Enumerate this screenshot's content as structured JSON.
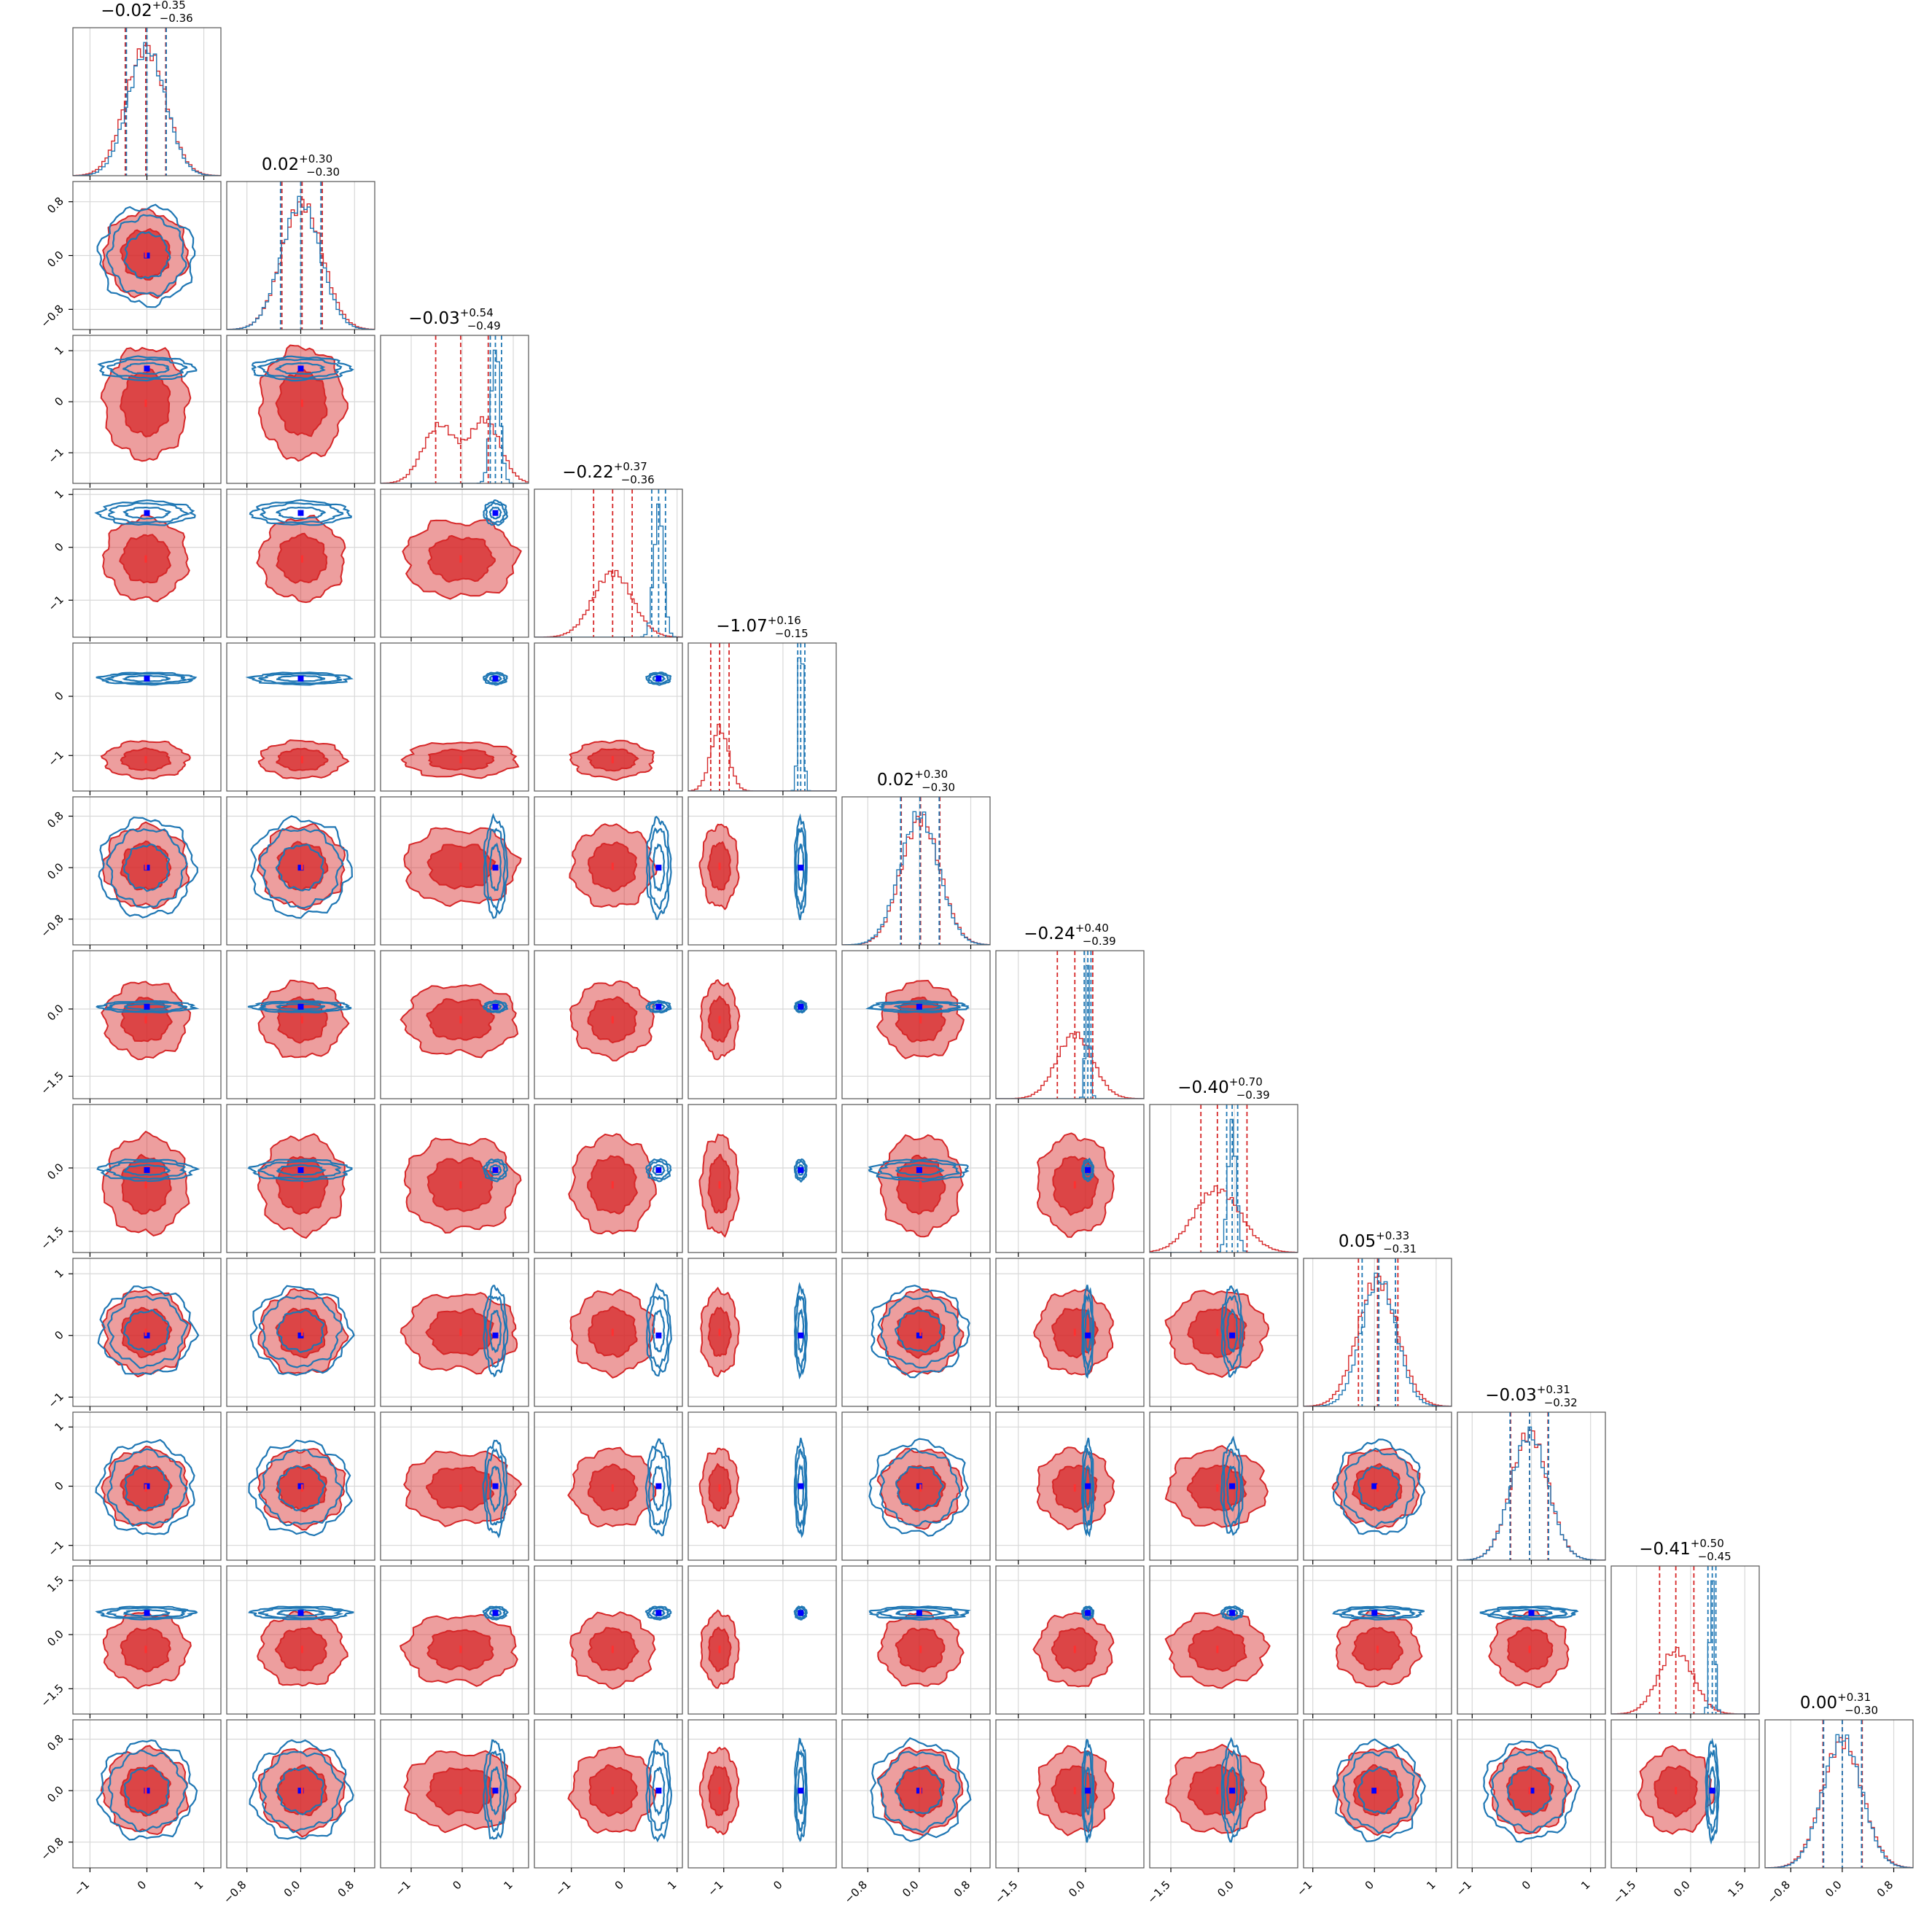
{
  "chart_data": {
    "type": "corner",
    "n_params": 12,
    "grid": true,
    "series": [
      {
        "color": "#d62728",
        "style": "filled-contours"
      },
      {
        "color": "#1f77b4",
        "style": "line-contours"
      }
    ],
    "truth_color": "#0000ff",
    "params": [
      {
        "title_median": "−0.02",
        "title_plus": "+0.35",
        "title_minus": "−0.36",
        "range": [
          -1.3,
          1.3
        ],
        "ticks": [
          -1,
          0,
          1
        ],
        "tick_labels": [
          "−1",
          "0",
          "1"
        ],
        "red_mean": -0.02,
        "red_sd": 0.35,
        "blue_mean": 0.0,
        "blue_sd": 0.33,
        "red_q": [
          -0.38,
          -0.02,
          0.33
        ],
        "blue_q": [
          -0.36,
          0.0,
          0.34
        ]
      },
      {
        "title_median": "0.02",
        "title_plus": "+0.30",
        "title_minus": "−0.30",
        "range": [
          -1.1,
          1.1
        ],
        "ticks": [
          -0.8,
          0.0,
          0.8
        ],
        "tick_labels": [
          "−0.8",
          "0.0",
          "0.8"
        ],
        "red_mean": 0.02,
        "red_sd": 0.3,
        "blue_mean": 0.0,
        "blue_sd": 0.29,
        "red_q": [
          -0.28,
          0.02,
          0.32
        ],
        "blue_q": [
          -0.3,
          0.0,
          0.3
        ]
      },
      {
        "title_median": "−0.03",
        "title_plus": "+0.54",
        "title_minus": "−0.49",
        "range": [
          -1.6,
          1.3
        ],
        "ticks": [
          -1,
          0,
          1
        ],
        "tick_labels": [
          "−1",
          "0",
          "1"
        ],
        "red_mean": -0.03,
        "red_sd": 0.52,
        "blue_mean": 0.65,
        "blue_sd": 0.09,
        "red_q": [
          -0.52,
          -0.03,
          0.51
        ],
        "blue_q": [
          0.55,
          0.65,
          0.77
        ],
        "red_bimodal": true
      },
      {
        "title_median": "−0.22",
        "title_plus": "+0.37",
        "title_minus": "−0.36",
        "range": [
          -1.7,
          1.1
        ],
        "ticks": [
          -1,
          0,
          1
        ],
        "tick_labels": [
          "−1",
          "0",
          "1"
        ],
        "red_mean": -0.22,
        "red_sd": 0.37,
        "blue_mean": 0.65,
        "blue_sd": 0.09,
        "red_q": [
          -0.58,
          -0.22,
          0.15
        ],
        "blue_q": [
          0.52,
          0.65,
          0.78
        ]
      },
      {
        "title_median": "−1.07",
        "title_plus": "+0.16",
        "title_minus": "−0.15",
        "range": [
          -1.6,
          0.9
        ],
        "ticks": [
          -1,
          0
        ],
        "tick_labels": [
          "−1",
          "0"
        ],
        "red_mean": -1.07,
        "red_sd": 0.15,
        "blue_mean": 0.3,
        "blue_sd": 0.04,
        "red_q": [
          -1.22,
          -1.07,
          -0.91
        ],
        "blue_q": [
          0.25,
          0.3,
          0.37
        ]
      },
      {
        "title_median": "0.02",
        "title_plus": "+0.30",
        "title_minus": "−0.30",
        "range": [
          -1.2,
          1.1
        ],
        "ticks": [
          -0.8,
          0.0,
          0.8
        ],
        "tick_labels": [
          "−0.8",
          "0.0",
          "0.8"
        ],
        "red_mean": 0.02,
        "red_sd": 0.3,
        "blue_mean": 0.0,
        "blue_sd": 0.3,
        "red_q": [
          -0.28,
          0.02,
          0.32
        ],
        "blue_q": [
          -0.29,
          0.01,
          0.31
        ]
      },
      {
        "title_median": "−0.24",
        "title_plus": "+0.40",
        "title_minus": "−0.39",
        "range": [
          -2.0,
          1.3
        ],
        "ticks": [
          -1.5,
          0.0
        ],
        "tick_labels": [
          "−1.5",
          "0.0"
        ],
        "red_mean": -0.24,
        "red_sd": 0.4,
        "blue_mean": 0.05,
        "blue_sd": 0.05,
        "red_q": [
          -0.63,
          -0.24,
          0.16
        ],
        "blue_q": [
          -0.03,
          0.05,
          0.12
        ]
      },
      {
        "title_median": "−0.40",
        "title_plus": "+0.70",
        "title_minus": "−0.39",
        "range": [
          -2.0,
          1.5
        ],
        "ticks": [
          -1.5,
          0.0
        ],
        "tick_labels": [
          "−1.5",
          "0.0"
        ],
        "red_mean": -0.4,
        "red_sd": 0.55,
        "blue_mean": -0.05,
        "blue_sd": 0.1,
        "red_q": [
          -0.79,
          -0.4,
          0.3
        ],
        "blue_q": [
          -0.18,
          -0.05,
          0.08
        ]
      },
      {
        "title_median": "0.05",
        "title_plus": "+0.33",
        "title_minus": "−0.31",
        "range": [
          -1.15,
          1.25
        ],
        "ticks": [
          -1,
          0,
          1
        ],
        "tick_labels": [
          "−1",
          "0",
          "1"
        ],
        "red_mean": 0.05,
        "red_sd": 0.32,
        "blue_mean": 0.07,
        "blue_sd": 0.28,
        "red_q": [
          -0.26,
          0.05,
          0.38
        ],
        "blue_q": [
          -0.2,
          0.07,
          0.34
        ]
      },
      {
        "title_median": "−0.03",
        "title_plus": "+0.31",
        "title_minus": "−0.32",
        "range": [
          -1.25,
          1.25
        ],
        "ticks": [
          -1,
          0,
          1
        ],
        "tick_labels": [
          "−1",
          "0",
          "1"
        ],
        "red_mean": -0.03,
        "red_sd": 0.31,
        "blue_mean": -0.03,
        "blue_sd": 0.31,
        "red_q": [
          -0.35,
          -0.03,
          0.28
        ],
        "blue_q": [
          -0.36,
          -0.03,
          0.29
        ]
      },
      {
        "title_median": "−0.41",
        "title_plus": "+0.50",
        "title_minus": "−0.45",
        "range": [
          -2.2,
          1.9
        ],
        "ticks": [
          -1.5,
          0.0,
          1.5
        ],
        "tick_labels": [
          "−1.5",
          "0.0",
          "1.5"
        ],
        "red_mean": -0.41,
        "red_sd": 0.48,
        "blue_mean": 0.6,
        "blue_sd": 0.07,
        "red_q": [
          -0.86,
          -0.41,
          0.09
        ],
        "blue_q": [
          0.48,
          0.6,
          0.7
        ]
      },
      {
        "title_median": "0.00",
        "title_plus": "+0.31",
        "title_minus": "−0.30",
        "range": [
          -1.2,
          1.1
        ],
        "ticks": [
          -0.8,
          0.0,
          0.8
        ],
        "tick_labels": [
          "−0.8",
          "0.0",
          "0.8"
        ],
        "red_mean": 0.0,
        "red_sd": 0.31,
        "blue_mean": 0.0,
        "blue_sd": 0.3,
        "red_q": [
          -0.3,
          0.0,
          0.31
        ],
        "blue_q": [
          -0.29,
          0.0,
          0.3
        ]
      }
    ],
    "truth_values": [
      0.0,
      0.0,
      0.65,
      0.65,
      0.3,
      0.0,
      0.05,
      -0.05,
      0.0,
      0.0,
      0.6,
      0.0
    ]
  }
}
